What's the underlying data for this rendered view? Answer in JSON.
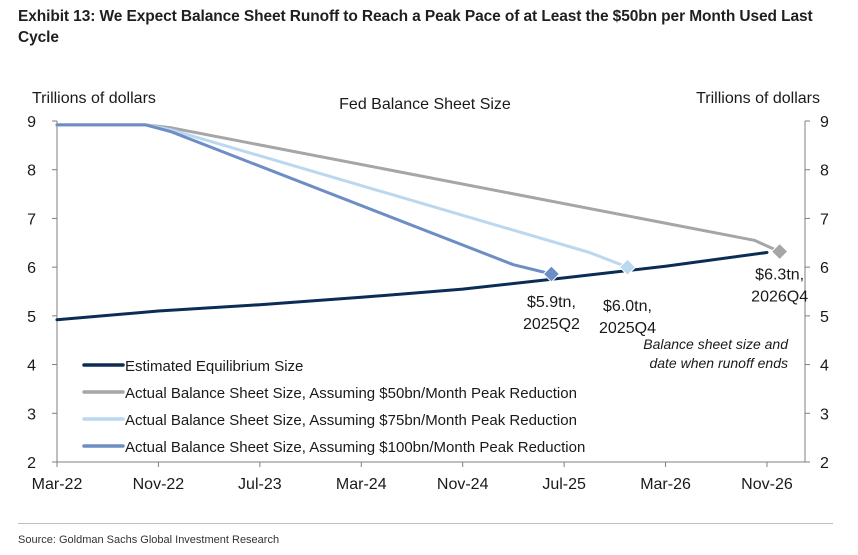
{
  "title": "Exhibit 13: We Expect Balance Sheet Runoff to Reach a Peak Pace of at Least the $50bn per Month Used Last Cycle",
  "source": "Source: Goldman Sachs Global Investment Research",
  "chart_data": {
    "type": "line",
    "title": "Fed Balance Sheet Size",
    "ylabel_left": "Trillions of dollars",
    "ylabel_right": "Trillions of dollars",
    "ylim": [
      2,
      9
    ],
    "yticks": [
      2,
      3,
      4,
      5,
      6,
      7,
      8,
      9
    ],
    "xlim": [
      "2022-03",
      "2027-02"
    ],
    "xticks": [
      "Mar-22",
      "Nov-22",
      "Jul-23",
      "Mar-24",
      "Nov-24",
      "Jul-25",
      "Mar-26",
      "Nov-26"
    ],
    "xtick_dates": [
      "2022-03",
      "2022-11",
      "2023-07",
      "2024-03",
      "2024-11",
      "2025-07",
      "2026-03",
      "2026-11"
    ],
    "grid": false,
    "legend_position": "bottom-left",
    "series": [
      {
        "name": "Estimated Equilibrium Size",
        "color": "#0b2d55",
        "width": 3,
        "points": [
          [
            "2022-03",
            4.92
          ],
          [
            "2022-11",
            5.1
          ],
          [
            "2023-07",
            5.23
          ],
          [
            "2024-03",
            5.38
          ],
          [
            "2024-11",
            5.55
          ],
          [
            "2025-07",
            5.78
          ],
          [
            "2026-03",
            6.02
          ],
          [
            "2026-11",
            6.3
          ]
        ]
      },
      {
        "name": "Actual Balance Sheet Size, Assuming $50bn/Month Peak Reduction",
        "color": "#a6a6a6",
        "width": 3,
        "points": [
          [
            "2022-03",
            8.92
          ],
          [
            "2022-10",
            8.92
          ],
          [
            "2022-12",
            8.86
          ],
          [
            "2026-10",
            6.55
          ],
          [
            "2026-12",
            6.32
          ]
        ],
        "end_marker": {
          "point": [
            "2026-12",
            6.32
          ],
          "label": [
            "$6.3tn,",
            "2026Q4"
          ],
          "label_anchor": "below"
        }
      },
      {
        "name": "Actual Balance Sheet Size, Assuming $75bn/Month Peak Reduction",
        "color": "#bcd8f0",
        "width": 3,
        "points": [
          [
            "2022-03",
            8.92
          ],
          [
            "2022-10",
            8.92
          ],
          [
            "2022-12",
            8.82
          ],
          [
            "2025-09",
            6.3
          ],
          [
            "2025-12",
            6.0
          ]
        ],
        "end_marker": {
          "point": [
            "2025-12",
            6.0
          ],
          "label": [
            "$6.0tn,",
            "2025Q4"
          ],
          "label_anchor": "below"
        }
      },
      {
        "name": "Actual Balance Sheet Size, Assuming $100bn/Month Peak Reduction",
        "color": "#6d8ec4",
        "width": 3,
        "points": [
          [
            "2022-03",
            8.92
          ],
          [
            "2022-10",
            8.92
          ],
          [
            "2022-12",
            8.78
          ],
          [
            "2025-03",
            6.05
          ],
          [
            "2025-06",
            5.86
          ]
        ],
        "end_marker": {
          "point": [
            "2025-06",
            5.86
          ],
          "label": [
            "$5.9tn,",
            "2025Q2"
          ],
          "label_anchor": "below"
        }
      }
    ],
    "annotation": [
      "Balance sheet size and",
      "date when runoff ends"
    ]
  }
}
